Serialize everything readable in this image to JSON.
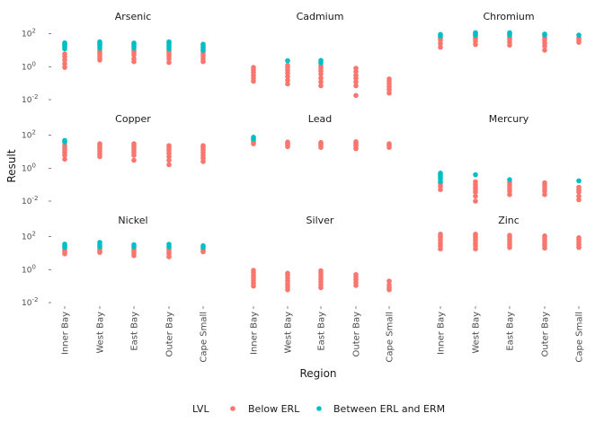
{
  "chart_data": {
    "type": "scatter",
    "title": "",
    "xlabel": "Region",
    "ylabel": "Result",
    "y_scale": "log10",
    "ylim": [
      0.01,
      200
    ],
    "y_ticks": [
      {
        "value": 0.01,
        "base": "10",
        "exp": "-2"
      },
      {
        "value": 1,
        "base": "10",
        "exp": "0"
      },
      {
        "value": 100,
        "base": "10",
        "exp": "2"
      }
    ],
    "categories": [
      "Inner Bay",
      "West Bay",
      "East Bay",
      "Outer Bay",
      "Cape Small"
    ],
    "legend": {
      "title": "LVL",
      "position": "bottom",
      "entries": [
        {
          "label": "Below ERL",
          "color": "#F8766D"
        },
        {
          "label": "Between ERL and ERM",
          "color": "#00BFC4"
        }
      ]
    },
    "grid": false,
    "facets": [
      {
        "name": "Arsenic",
        "points": [
          {
            "region": "Inner Bay",
            "below": [
              0.9,
              1.5,
              2.5,
              4,
              6
            ],
            "between": [
              12,
              16,
              20,
              24,
              28
            ]
          },
          {
            "region": "West Bay",
            "below": [
              2.5,
              3.5,
              5,
              7,
              9
            ],
            "between": [
              13,
              17,
              22,
              27,
              32
            ]
          },
          {
            "region": "East Bay",
            "below": [
              2,
              3,
              5,
              7,
              9
            ],
            "between": [
              13,
              17,
              22,
              27
            ]
          },
          {
            "region": "Outer Bay",
            "below": [
              1.8,
              3,
              4.5,
              6.5,
              9
            ],
            "between": [
              12,
              16,
              21,
              27,
              32
            ]
          },
          {
            "region": "Cape Small",
            "below": [
              2,
              3,
              4.5,
              6.5,
              9
            ],
            "between": [
              10,
              14,
              18,
              23
            ]
          }
        ]
      },
      {
        "name": "Cadmium",
        "points": [
          {
            "region": "Inner Bay",
            "below": [
              0.13,
              0.2,
              0.3,
              0.45,
              0.65,
              0.9
            ],
            "between": []
          },
          {
            "region": "West Bay",
            "below": [
              0.09,
              0.15,
              0.25,
              0.4,
              0.6,
              0.9,
              1.2
            ],
            "between": [
              2.3
            ]
          },
          {
            "region": "East Bay",
            "below": [
              0.07,
              0.12,
              0.2,
              0.35,
              0.55,
              0.8,
              1.1
            ],
            "between": [
              1.7,
              2.4
            ]
          },
          {
            "region": "Outer Bay",
            "below": [
              0.018,
              0.07,
              0.12,
              0.2,
              0.3,
              0.5,
              0.8
            ]
          },
          {
            "region": "Cape Small",
            "below": [
              0.025,
              0.04,
              0.06,
              0.09,
              0.13,
              0.18
            ]
          }
        ]
      },
      {
        "name": "Chromium",
        "points": [
          {
            "region": "Inner Bay",
            "below": [
              15,
              25,
              40,
              55
            ],
            "between": [
              70,
              90
            ]
          },
          {
            "region": "West Bay",
            "below": [
              22,
              35,
              50,
              65
            ],
            "between": [
              82,
              100,
              115
            ]
          },
          {
            "region": "East Bay",
            "below": [
              20,
              30,
              45,
              60
            ],
            "between": [
              82,
              100,
              115
            ]
          },
          {
            "region": "Outer Bay",
            "below": [
              10,
              18,
              28,
              42,
              60
            ],
            "between": [
              82,
              95
            ]
          },
          {
            "region": "Cape Small",
            "below": [
              30,
              40,
              55
            ],
            "between": [
              82
            ]
          }
        ]
      },
      {
        "name": "Copper",
        "points": [
          {
            "region": "Inner Bay",
            "below": [
              3.5,
              6,
              9,
              13,
              18,
              24
            ],
            "between": [
              38,
              48
            ]
          },
          {
            "region": "West Bay",
            "below": [
              5,
              7,
              10,
              14,
              19,
              25,
              30
            ]
          },
          {
            "region": "East Bay",
            "below": [
              3,
              6,
              9,
              13,
              18,
              24,
              30
            ]
          },
          {
            "region": "Outer Bay",
            "below": [
              1.6,
              3,
              5,
              8,
              12,
              17,
              23
            ]
          },
          {
            "region": "Cape Small",
            "below": [
              2.5,
              4,
              6,
              9,
              13,
              18,
              23
            ]
          }
        ]
      },
      {
        "name": "Lead",
        "points": [
          {
            "region": "Inner Bay",
            "below": [
              30,
              40,
              50
            ],
            "between": [
              60,
              75
            ]
          },
          {
            "region": "West Bay",
            "below": [
              20,
              26,
              32,
              38
            ]
          },
          {
            "region": "East Bay",
            "below": [
              18,
              24,
              30,
              36
            ]
          },
          {
            "region": "Outer Bay",
            "below": [
              15,
              20,
              26,
              32,
              40
            ]
          },
          {
            "region": "Cape Small",
            "below": [
              18,
              24,
              30
            ]
          }
        ]
      },
      {
        "name": "Mercury",
        "points": [
          {
            "region": "Inner Bay",
            "below": [
              0.05,
              0.08,
              0.12
            ],
            "between": [
              0.15,
              0.22,
              0.3,
              0.4,
              0.5
            ]
          },
          {
            "region": "West Bay",
            "below": [
              0.01,
              0.02,
              0.035,
              0.05,
              0.07,
              0.1,
              0.15
            ],
            "between": [
              0.4
            ]
          },
          {
            "region": "East Bay",
            "below": [
              0.025,
              0.04,
              0.06,
              0.09,
              0.13
            ],
            "between": [
              0.2
            ]
          },
          {
            "region": "Outer Bay",
            "below": [
              0.025,
              0.04,
              0.06,
              0.09,
              0.13
            ]
          },
          {
            "region": "Cape Small",
            "below": [
              0.012,
              0.02,
              0.035,
              0.05,
              0.07
            ],
            "between": [
              0.17
            ]
          }
        ]
      },
      {
        "name": "Nickel",
        "points": [
          {
            "region": "Inner Bay",
            "below": [
              9,
              11,
              14,
              18
            ],
            "between": [
              22,
              28,
              35
            ]
          },
          {
            "region": "West Bay",
            "below": [
              11,
              14,
              18
            ],
            "between": [
              24,
              32,
              45
            ]
          },
          {
            "region": "East Bay",
            "below": [
              7,
              10,
              14,
              18
            ],
            "between": [
              24,
              32
            ]
          },
          {
            "region": "Outer Bay",
            "below": [
              6,
              9,
              12,
              17
            ],
            "between": [
              24,
              34
            ]
          },
          {
            "region": "Cape Small",
            "below": [
              12,
              16
            ],
            "between": [
              22,
              28
            ]
          }
        ]
      },
      {
        "name": "Silver",
        "points": [
          {
            "region": "Inner Bay",
            "below": [
              0.1,
              0.15,
              0.22,
              0.32,
              0.45,
              0.65,
              0.9
            ]
          },
          {
            "region": "West Bay",
            "below": [
              0.06,
              0.09,
              0.13,
              0.2,
              0.3,
              0.45,
              0.6
            ]
          },
          {
            "region": "East Bay",
            "below": [
              0.08,
              0.12,
              0.18,
              0.27,
              0.4,
              0.6,
              0.85
            ]
          },
          {
            "region": "Outer Bay",
            "below": [
              0.11,
              0.16,
              0.24,
              0.35,
              0.5
            ]
          },
          {
            "region": "Cape Small",
            "below": [
              0.06,
              0.08,
              0.12,
              0.2
            ]
          }
        ]
      },
      {
        "name": "Zinc",
        "points": [
          {
            "region": "Inner Bay",
            "below": [
              18,
              28,
              40,
              60,
              85,
              110,
              140
            ]
          },
          {
            "region": "West Bay",
            "below": [
              18,
              28,
              40,
              60,
              85,
              110,
              140
            ]
          },
          {
            "region": "East Bay",
            "below": [
              22,
              32,
              45,
              65,
              90,
              120
            ]
          },
          {
            "region": "Outer Bay",
            "below": [
              20,
              30,
              42,
              60,
              85,
              110
            ]
          },
          {
            "region": "Cape Small",
            "below": [
              22,
              32,
              45,
              65,
              85
            ]
          }
        ]
      }
    ]
  }
}
